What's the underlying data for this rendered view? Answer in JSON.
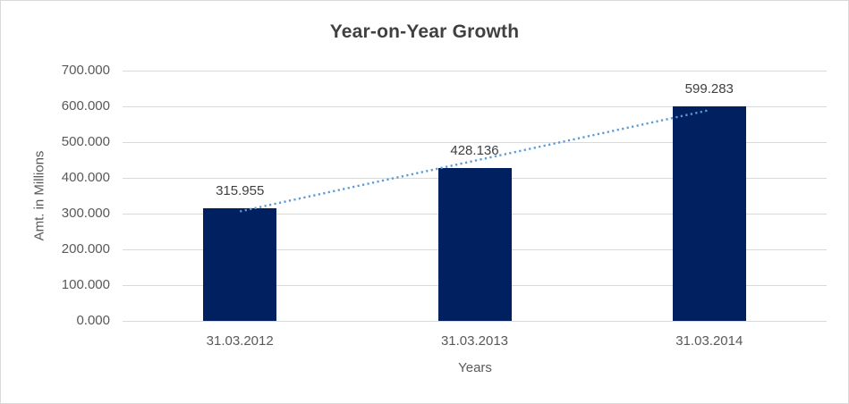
{
  "chart_data": {
    "type": "bar",
    "title": "Year-on-Year Growth",
    "xlabel": "Years",
    "ylabel": "Amt. in Millions",
    "categories": [
      "31.03.2012",
      "31.03.2013",
      "31.03.2014"
    ],
    "values": [
      315.955,
      428.136,
      599.283
    ],
    "value_labels": [
      "315.955",
      "428.136",
      "599.283"
    ],
    "ylim": [
      0,
      700
    ],
    "ytick_step": 100,
    "ytick_labels": [
      "0.000",
      "100.000",
      "200.000",
      "300.000",
      "400.000",
      "500.000",
      "600.000",
      "700.000"
    ],
    "grid": true,
    "legend": "none",
    "trendline": {
      "type": "linear",
      "style": "dotted",
      "color": "#5B9BD5"
    },
    "colors": {
      "bar": "#002060",
      "gridline": "#D9D9D9",
      "border": "#D9D9D9",
      "background": "#FFFFFF",
      "title_text": "#404040",
      "axis_text": "#595959",
      "label_text": "#404040"
    }
  }
}
